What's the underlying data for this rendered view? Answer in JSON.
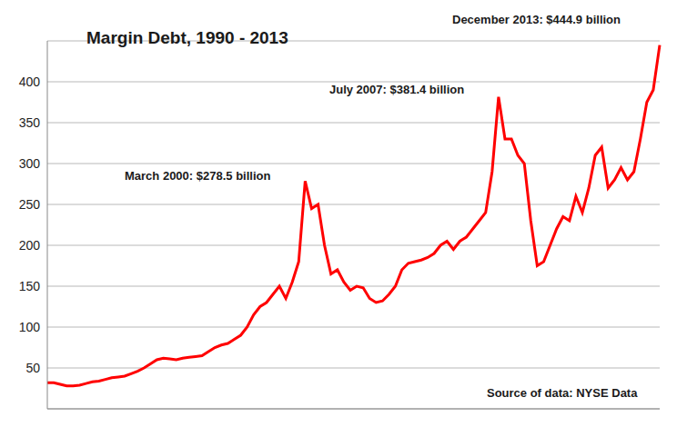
{
  "chart_data": {
    "type": "line",
    "title": "Margin Debt, 1990 - 2013",
    "categories": [
      null,
      null,
      null,
      null,
      null,
      null,
      null,
      null,
      null,
      null,
      null,
      null,
      null,
      null,
      null,
      null,
      null,
      null,
      null,
      null,
      null,
      null,
      null,
      null,
      null,
      null,
      null,
      null,
      null,
      null,
      null,
      null,
      null,
      null,
      null,
      null,
      null,
      null,
      null,
      null,
      null,
      null,
      null,
      null,
      null,
      null,
      null,
      null,
      null,
      null,
      null,
      null,
      null,
      null,
      null,
      null,
      null,
      null,
      null,
      null,
      null,
      null,
      null,
      null,
      null,
      null,
      null,
      null,
      null,
      null,
      null,
      null,
      null,
      null,
      null,
      null,
      null,
      null,
      null,
      null,
      null,
      null,
      null,
      null,
      null,
      null,
      null,
      null,
      null,
      null,
      null,
      null,
      null,
      null,
      null,
      null
    ],
    "values": [
      32,
      32,
      30,
      28,
      28,
      29,
      31,
      33,
      34,
      36,
      38,
      39,
      40,
      43,
      46,
      50,
      55,
      60,
      62,
      61,
      60,
      62,
      63,
      64,
      65,
      70,
      75,
      78,
      80,
      85,
      90,
      100,
      115,
      125,
      130,
      140,
      150,
      135,
      155,
      180,
      278.5,
      245,
      250,
      200,
      165,
      170,
      155,
      145,
      150,
      148,
      135,
      130,
      132,
      140,
      150,
      170,
      178,
      180,
      182,
      185,
      190,
      200,
      205,
      195,
      205,
      210,
      220,
      230,
      240,
      290,
      381.4,
      330,
      330,
      310,
      300,
      230,
      175,
      180,
      200,
      220,
      235,
      230,
      260,
      240,
      270,
      310,
      320,
      270,
      280,
      295,
      280,
      290,
      330,
      375,
      390,
      444.9
    ],
    "color": "#ff0000",
    "ylim": [
      0,
      450
    ],
    "yticks": [
      50,
      100,
      150,
      200,
      250,
      300,
      350,
      400
    ],
    "grid": true,
    "tick_labels": "y",
    "annotations": [
      "March 2000: $278.5 billion",
      "July 2007: $381.4 billion",
      "December 2013: $444.9 billion"
    ],
    "source": "Source of data: NYSE Data"
  }
}
